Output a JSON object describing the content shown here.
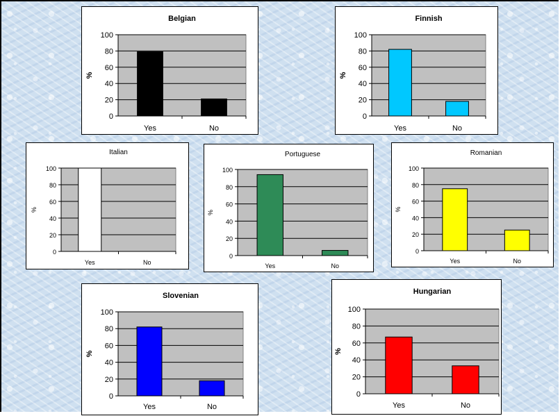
{
  "chart_data": [
    {
      "type": "bar",
      "title": "Belgian",
      "categories": [
        "Yes",
        "No"
      ],
      "values": [
        79,
        21
      ],
      "ylabel": "%",
      "ylim": [
        0,
        100
      ],
      "yticks": [
        0,
        20,
        40,
        60,
        80,
        100
      ],
      "color": "#000000",
      "grid": true,
      "title_bold": true
    },
    {
      "type": "bar",
      "title": "Finnish",
      "categories": [
        "Yes",
        "No"
      ],
      "values": [
        82,
        18
      ],
      "ylabel": "%",
      "ylim": [
        0,
        100
      ],
      "yticks": [
        0,
        20,
        40,
        60,
        80,
        100
      ],
      "color": "#00c8ff",
      "grid": true,
      "title_bold": true
    },
    {
      "type": "bar",
      "title": "Italian",
      "categories": [
        "Yes",
        "No"
      ],
      "values": [
        100,
        0
      ],
      "ylabel": "%",
      "ylim": [
        0,
        100
      ],
      "yticks": [
        0,
        20,
        40,
        60,
        80,
        100
      ],
      "color": "#ffffff",
      "grid": true,
      "title_bold": false
    },
    {
      "type": "bar",
      "title": "Portuguese",
      "categories": [
        "Yes",
        "No"
      ],
      "values": [
        94,
        6
      ],
      "ylabel": "%",
      "ylim": [
        0,
        100
      ],
      "yticks": [
        0,
        20,
        40,
        60,
        80,
        100
      ],
      "color": "#2e8b57",
      "grid": true,
      "title_bold": false
    },
    {
      "type": "bar",
      "title": "Romanian",
      "categories": [
        "Yes",
        "No"
      ],
      "values": [
        75,
        25
      ],
      "ylabel": "%",
      "ylim": [
        0,
        100
      ],
      "yticks": [
        0,
        20,
        40,
        60,
        80,
        100
      ],
      "color": "#ffff00",
      "grid": true,
      "title_bold": false
    },
    {
      "type": "bar",
      "title": "Slovenian",
      "categories": [
        "Yes",
        "No"
      ],
      "values": [
        82,
        18
      ],
      "ylabel": "%",
      "ylim": [
        0,
        100
      ],
      "yticks": [
        0,
        20,
        40,
        60,
        80,
        100
      ],
      "color": "#0000ff",
      "grid": true,
      "title_bold": true
    },
    {
      "type": "bar",
      "title": "Hungarian",
      "categories": [
        "Yes",
        "No"
      ],
      "values": [
        67,
        33
      ],
      "ylabel": "%",
      "ylim": [
        0,
        100
      ],
      "yticks": [
        0,
        20,
        40,
        60,
        80,
        100
      ],
      "color": "#ff0000",
      "grid": true,
      "title_bold": true
    }
  ]
}
